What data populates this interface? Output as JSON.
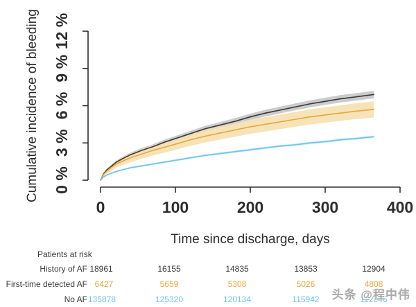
{
  "watermark": "头条 @程中伟",
  "colors": {
    "text": "#2d2d2d",
    "background": "#ffffff",
    "axis": "#2d2d2d"
  },
  "chart_data": {
    "type": "line",
    "title": "",
    "xlabel": "Time since discharge, days",
    "ylabel": "Cumulative incidence of bleeding",
    "xlim": [
      0,
      400
    ],
    "ylim": [
      0,
      12
    ],
    "grid": false,
    "legend_position": "none",
    "xticks": [
      0,
      100,
      200,
      300,
      400
    ],
    "ytick_values": [
      0,
      3,
      6,
      9,
      12
    ],
    "ytick_labels": [
      "0 %",
      "3 %",
      "6 %",
      "9 %",
      "12 %"
    ],
    "x_days": [
      0,
      4,
      8,
      14,
      21,
      30,
      40,
      55,
      70,
      85,
      100,
      120,
      140,
      160,
      180,
      200,
      220,
      240,
      260,
      280,
      300,
      320,
      340,
      365
    ],
    "series": [
      {
        "name": "History of AF",
        "color": "#3e3e3e",
        "band_color": "#c6c6c6",
        "values": [
          0,
          0.5,
          0.8,
          1.1,
          1.45,
          1.75,
          2.05,
          2.4,
          2.7,
          3.05,
          3.35,
          3.75,
          4.15,
          4.45,
          4.75,
          5.1,
          5.4,
          5.65,
          5.9,
          6.15,
          6.35,
          6.55,
          6.7,
          6.9
        ],
        "ci_halfwidth": [
          0.05,
          0.1,
          0.12,
          0.13,
          0.15,
          0.16,
          0.17,
          0.18,
          0.19,
          0.2,
          0.21,
          0.22,
          0.23,
          0.24,
          0.25,
          0.26,
          0.27,
          0.27,
          0.28,
          0.28,
          0.29,
          0.3,
          0.3,
          0.31
        ]
      },
      {
        "name": "First-time detected AF",
        "color": "#e9a83c",
        "band_color": "#f6e0b0",
        "values": [
          0,
          0.45,
          0.7,
          1.0,
          1.3,
          1.55,
          1.8,
          2.1,
          2.4,
          2.65,
          2.9,
          3.25,
          3.55,
          3.8,
          4.05,
          4.3,
          4.5,
          4.7,
          4.9,
          5.1,
          5.25,
          5.4,
          5.55,
          5.7
        ],
        "ci_halfwidth": [
          0.08,
          0.15,
          0.2,
          0.25,
          0.29,
          0.32,
          0.35,
          0.38,
          0.41,
          0.44,
          0.46,
          0.49,
          0.51,
          0.53,
          0.55,
          0.57,
          0.58,
          0.59,
          0.6,
          0.61,
          0.62,
          0.63,
          0.64,
          0.65
        ]
      },
      {
        "name": "No AF",
        "color": "#6fc5ee",
        "band_color": "#c9e9f9",
        "values": [
          0,
          0.25,
          0.4,
          0.55,
          0.7,
          0.85,
          1.0,
          1.15,
          1.3,
          1.45,
          1.6,
          1.8,
          2.0,
          2.15,
          2.3,
          2.45,
          2.6,
          2.75,
          2.85,
          3.0,
          3.1,
          3.25,
          3.35,
          3.5
        ],
        "ci_halfwidth": [
          0.02,
          0.04,
          0.05,
          0.05,
          0.06,
          0.06,
          0.07,
          0.07,
          0.07,
          0.08,
          0.08,
          0.08,
          0.08,
          0.09,
          0.09,
          0.09,
          0.09,
          0.09,
          0.1,
          0.1,
          0.1,
          0.1,
          0.1,
          0.1
        ]
      }
    ]
  },
  "risk_table": {
    "title": "Patients at risk",
    "rows": [
      {
        "label": "History of AF",
        "color": "#3a3a3a",
        "values": [
          "18961",
          "16155",
          "14835",
          "13853",
          "12904"
        ]
      },
      {
        "label": "First-time detected AF ",
        "color": "#e9a83c",
        "values": [
          "6427",
          "5659",
          "5308",
          "5026",
          "4808"
        ]
      },
      {
        "label": "No AF",
        "color": "#6fc5ee",
        "values": [
          "135878",
          "125320",
          "120134",
          "115942",
          "112046"
        ]
      }
    ]
  }
}
